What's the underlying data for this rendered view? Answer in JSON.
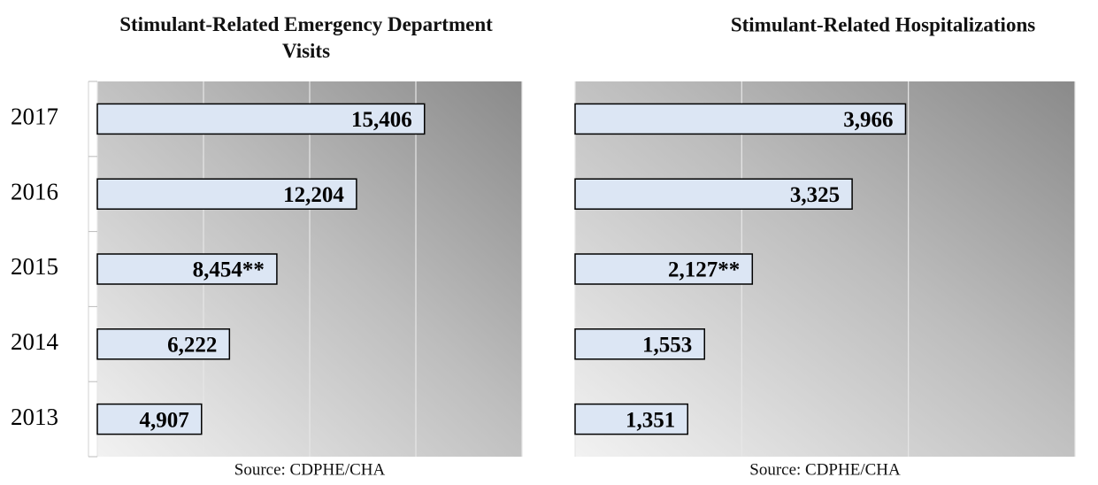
{
  "chart_data": [
    {
      "type": "bar",
      "orientation": "horizontal",
      "title": "Stimulant-Related Emergency Department Visits",
      "categories": [
        "2017",
        "2016",
        "2015",
        "2014",
        "2013"
      ],
      "values": [
        15406,
        12204,
        8454,
        6222,
        4907
      ],
      "value_labels": [
        "15,406",
        "12,204",
        "8,454**",
        "6,222",
        "4,907"
      ],
      "color": "#dce6f4",
      "xlim": [
        0,
        20000
      ],
      "xticks": [
        0,
        5000,
        10000,
        15000,
        20000
      ],
      "grid": true,
      "source": "Source: CDPHE/CHA"
    },
    {
      "type": "bar",
      "orientation": "horizontal",
      "title": "Stimulant-Related Hospitalizations",
      "categories": [
        "2017",
        "2016",
        "2015",
        "2014",
        "2013"
      ],
      "values": [
        3966,
        3325,
        2127,
        1553,
        1351
      ],
      "value_labels": [
        "3,966",
        "3,325",
        "2,127**",
        "1,553",
        "1,351"
      ],
      "color": "#dce6f4",
      "xlim": [
        0,
        6000
      ],
      "xticks": [
        0,
        2000,
        4000,
        6000
      ],
      "grid": true,
      "source": "Source: CDPHE/CHA"
    }
  ]
}
